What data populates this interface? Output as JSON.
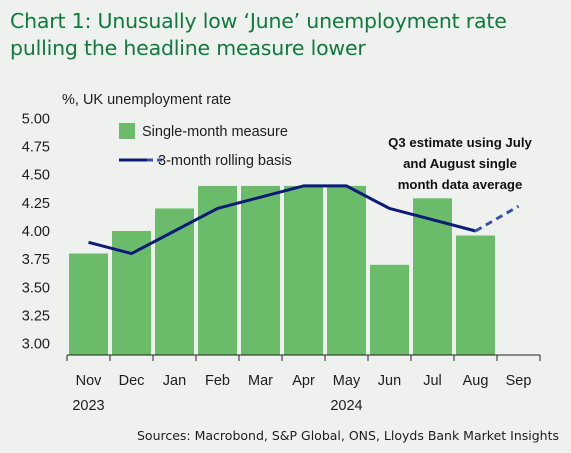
{
  "title": "Chart 1: Unusually low ‘June’ unemployment rate pulling the headline measure lower",
  "source": "Sources: Macrobond, S&P Global, ONS, Lloyds Bank Market Insights",
  "chart_data": {
    "type": "bar",
    "ylabel": "%, UK unemployment rate",
    "xlabel": "",
    "categories": [
      "Nov",
      "Dec",
      "Jan",
      "Feb",
      "Mar",
      "Apr",
      "May",
      "Jun",
      "Jul",
      "Aug",
      "Sep"
    ],
    "year_labels": [
      {
        "category": "Nov",
        "label": "2023"
      },
      {
        "category": "May",
        "label": "2024"
      }
    ],
    "ylim": [
      2.9,
      5.1
    ],
    "yticks": [
      "3.00",
      "3.25",
      "3.50",
      "3.75",
      "4.00",
      "4.25",
      "4.50",
      "4.75",
      "5.00"
    ],
    "grid": false,
    "legend_position": "top-left",
    "series": [
      {
        "name": "Single-month measure",
        "type": "bar",
        "color": "#6abb6a",
        "values": [
          3.8,
          4.0,
          4.2,
          4.4,
          4.4,
          4.4,
          4.4,
          3.7,
          4.29,
          3.96,
          null
        ]
      },
      {
        "name": "3-month rolling basis",
        "type": "line",
        "color": "#0c1a78",
        "values": [
          3.9,
          3.8,
          4.0,
          4.2,
          4.3,
          4.4,
          4.4,
          4.2,
          4.1,
          4.0,
          null
        ]
      },
      {
        "name": "",
        "type": "line",
        "style": "dashed",
        "color": "#3a4fb0",
        "values": [
          null,
          null,
          null,
          null,
          null,
          null,
          null,
          null,
          null,
          4.0,
          4.22
        ]
      }
    ],
    "annotation": "Q3 estimate using July and August single month data average"
  }
}
